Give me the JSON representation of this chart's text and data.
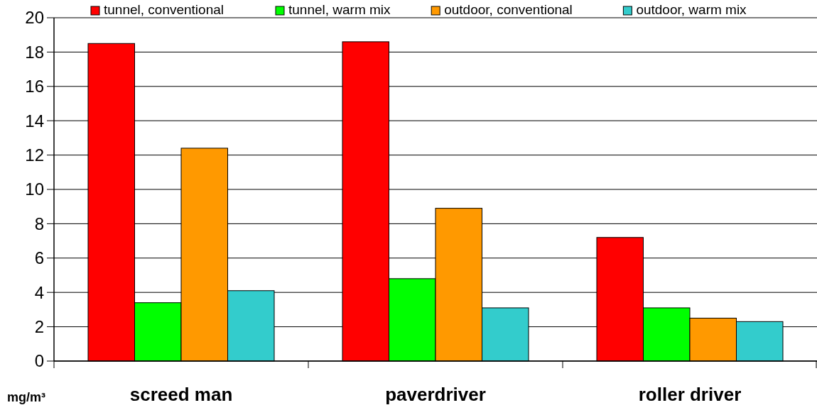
{
  "chart_data": {
    "type": "bar",
    "ylabel": "mg/m³",
    "categories": [
      "screed man",
      "paverdriver",
      "roller driver"
    ],
    "series": [
      {
        "name": "tunnel, conventional",
        "color": "#ff0000",
        "values": [
          18.5,
          18.6,
          7.2
        ]
      },
      {
        "name": "tunnel, warm mix",
        "color": "#00ff00",
        "values": [
          3.4,
          4.8,
          3.1
        ]
      },
      {
        "name": "outdoor, conventional",
        "color": "#ff9900",
        "values": [
          12.4,
          8.9,
          2.5
        ]
      },
      {
        "name": "outdoor, warm mix",
        "color": "#33cccc",
        "values": [
          4.1,
          3.1,
          2.3
        ]
      }
    ],
    "ylim": [
      0,
      20
    ],
    "yticks": [
      0,
      2,
      4,
      6,
      8,
      10,
      12,
      14,
      16,
      18,
      20
    ],
    "grid": "y",
    "legend": "top"
  }
}
